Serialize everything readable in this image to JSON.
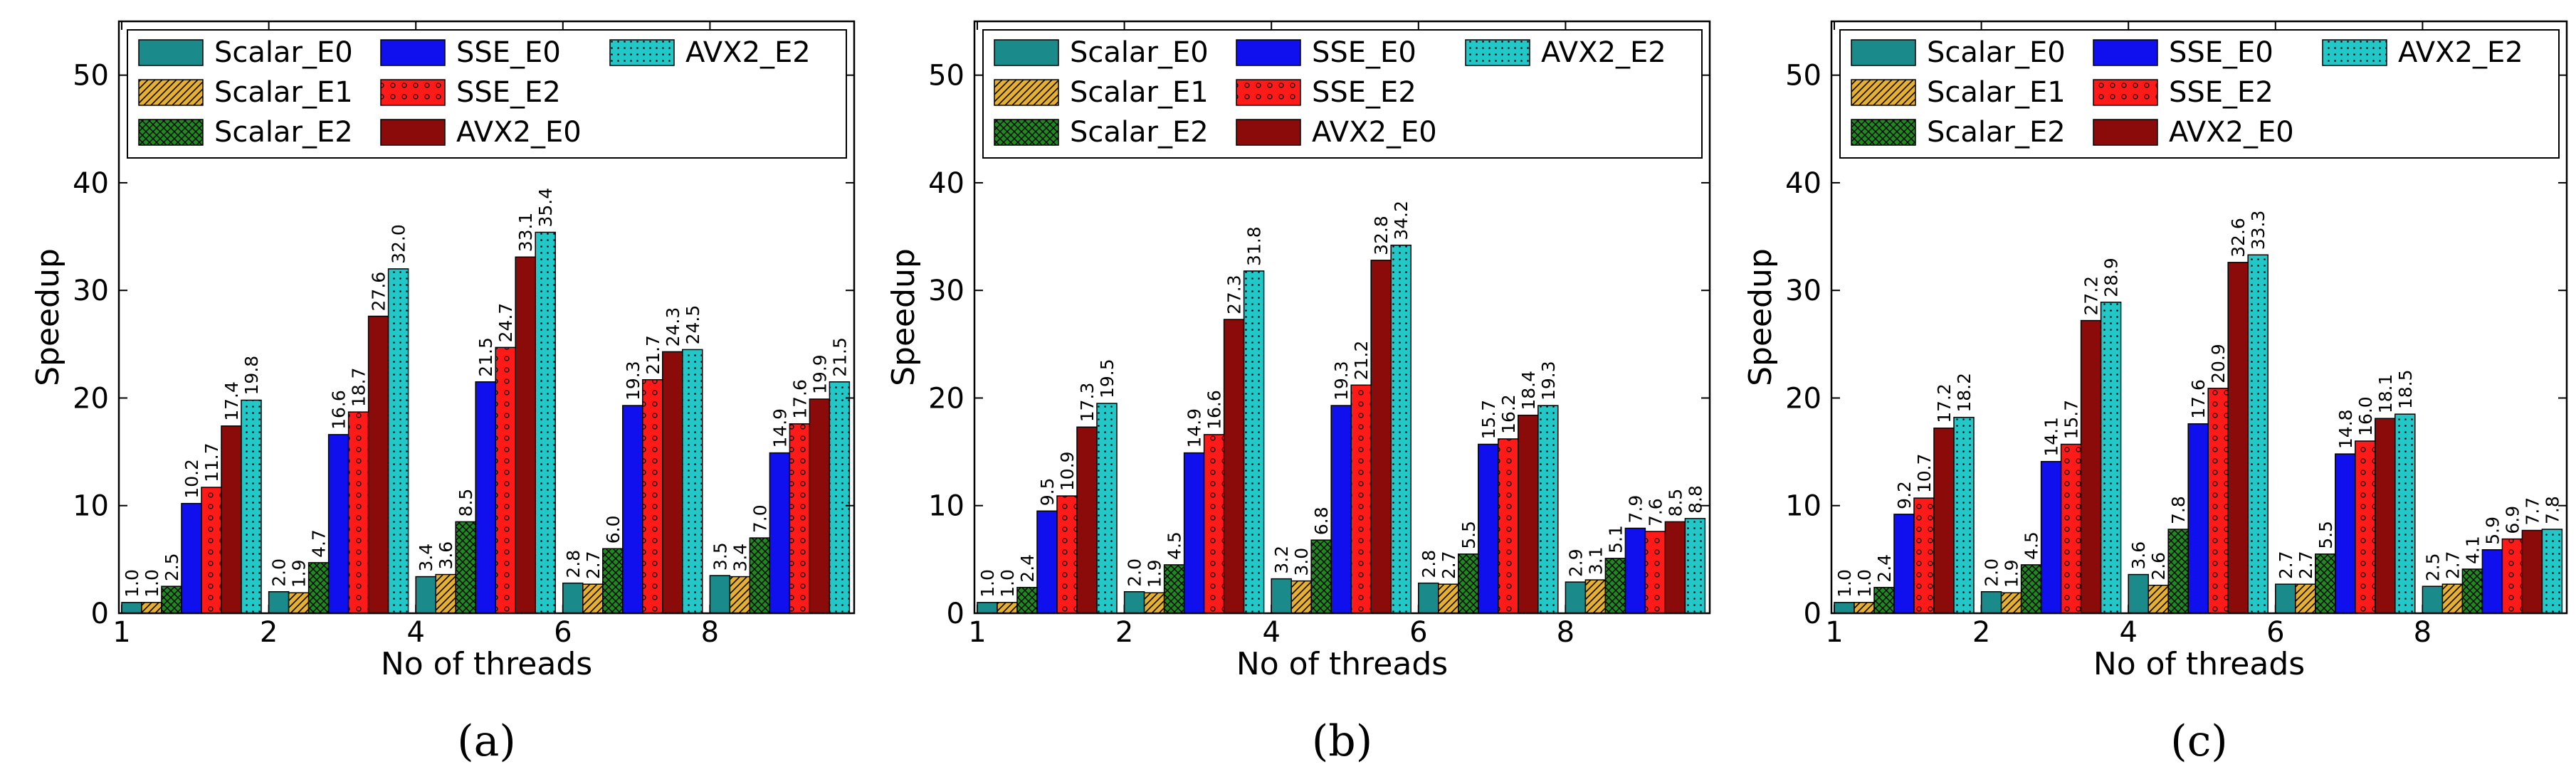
{
  "colors": {
    "Scalar_E0": "#1a8a8a",
    "Scalar_E1": "#e8b02a",
    "Scalar_E2": "#1f8a1f",
    "SSE_E0": "#1010ee",
    "SSE_E2": "#ff1a1a",
    "AVX2_E0": "#8b0b0b",
    "AVX2_E2": "#22c8c8"
  },
  "chart_data": [
    {
      "type": "bar",
      "caption": "(a)",
      "xlabel": "No of threads",
      "ylabel": "Speedup",
      "ylim": [
        0,
        55
      ],
      "yticks": [
        "0",
        "10",
        "20",
        "30",
        "40",
        "50"
      ],
      "categories": [
        "1",
        "2",
        "4",
        "6",
        "8"
      ],
      "legend_position": "top",
      "series": [
        {
          "name": "Scalar_E0",
          "values": [
            1.0,
            2.0,
            3.4,
            2.8,
            3.5
          ],
          "labels": [
            "1.0",
            "2.0",
            "3.4",
            "2.8",
            "3.5"
          ]
        },
        {
          "name": "Scalar_E1",
          "values": [
            1.0,
            1.9,
            3.6,
            2.7,
            3.4
          ],
          "labels": [
            "1.0",
            "1.9",
            "3.6",
            "2.7",
            "3.4"
          ]
        },
        {
          "name": "Scalar_E2",
          "values": [
            2.5,
            4.7,
            8.5,
            6.0,
            7.0
          ],
          "labels": [
            "2.5",
            "4.7",
            "8.5",
            "6.0",
            "7.0"
          ]
        },
        {
          "name": "SSE_E0",
          "values": [
            10.2,
            16.6,
            21.5,
            19.3,
            14.9
          ],
          "labels": [
            "10.2",
            "16.6",
            "21.5",
            "19.3",
            "14.9"
          ]
        },
        {
          "name": "SSE_E2",
          "values": [
            11.7,
            18.7,
            24.7,
            21.7,
            17.6
          ],
          "labels": [
            "11.7",
            "18.7",
            "24.7",
            "21.7",
            "17.6"
          ]
        },
        {
          "name": "AVX2_E0",
          "values": [
            17.4,
            27.6,
            33.1,
            24.3,
            19.9
          ],
          "labels": [
            "17.4",
            "27.6",
            "33.1",
            "24.3",
            "19.9"
          ]
        },
        {
          "name": "AVX2_E2",
          "values": [
            19.8,
            32.0,
            35.4,
            24.5,
            21.5
          ],
          "labels": [
            "19.8",
            "32.0",
            "35.4",
            "24.5",
            "21.5"
          ]
        }
      ]
    },
    {
      "type": "bar",
      "caption": "(b)",
      "xlabel": "No of threads",
      "ylabel": "Speedup",
      "ylim": [
        0,
        55
      ],
      "yticks": [
        "0",
        "10",
        "20",
        "30",
        "40",
        "50"
      ],
      "categories": [
        "1",
        "2",
        "4",
        "6",
        "8"
      ],
      "legend_position": "top",
      "series": [
        {
          "name": "Scalar_E0",
          "values": [
            1.0,
            2.0,
            3.2,
            2.8,
            2.9
          ],
          "labels": [
            "1.0",
            "2.0",
            "3.2",
            "2.8",
            "2.9"
          ]
        },
        {
          "name": "Scalar_E1",
          "values": [
            1.0,
            1.9,
            3.0,
            2.7,
            3.1
          ],
          "labels": [
            "1.0",
            "1.9",
            "3.0",
            "2.7",
            "3.1"
          ]
        },
        {
          "name": "Scalar_E2",
          "values": [
            2.4,
            4.5,
            6.8,
            5.5,
            5.1
          ],
          "labels": [
            "2.4",
            "4.5",
            "6.8",
            "5.5",
            "5.1"
          ]
        },
        {
          "name": "SSE_E0",
          "values": [
            9.5,
            14.9,
            19.3,
            15.7,
            7.9
          ],
          "labels": [
            "9.5",
            "14.9",
            "19.3",
            "15.7",
            "7.9"
          ]
        },
        {
          "name": "SSE_E2",
          "values": [
            10.9,
            16.6,
            21.2,
            16.2,
            7.6
          ],
          "labels": [
            "10.9",
            "16.6",
            "21.2",
            "16.2",
            "7.6"
          ]
        },
        {
          "name": "AVX2_E0",
          "values": [
            17.3,
            27.3,
            32.8,
            18.4,
            8.5
          ],
          "labels": [
            "17.3",
            "27.3",
            "32.8",
            "18.4",
            "8.5"
          ]
        },
        {
          "name": "AVX2_E2",
          "values": [
            19.5,
            31.8,
            34.2,
            19.3,
            8.8
          ],
          "labels": [
            "19.5",
            "31.8",
            "34.2",
            "19.3",
            "8.8"
          ]
        }
      ]
    },
    {
      "type": "bar",
      "caption": "(c)",
      "xlabel": "No of threads",
      "ylabel": "Speedup",
      "ylim": [
        0,
        55
      ],
      "yticks": [
        "0",
        "10",
        "20",
        "30",
        "40",
        "50"
      ],
      "categories": [
        "1",
        "2",
        "4",
        "6",
        "8"
      ],
      "legend_position": "top",
      "series": [
        {
          "name": "Scalar_E0",
          "values": [
            1.0,
            2.0,
            3.6,
            2.7,
            2.5
          ],
          "labels": [
            "1.0",
            "2.0",
            "3.6",
            "2.7",
            "2.5"
          ]
        },
        {
          "name": "Scalar_E1",
          "values": [
            1.0,
            1.9,
            2.6,
            2.7,
            2.7
          ],
          "labels": [
            "1.0",
            "1.9",
            "2.6",
            "2.7",
            "2.7"
          ]
        },
        {
          "name": "Scalar_E2",
          "values": [
            2.4,
            4.5,
            7.8,
            5.5,
            4.1
          ],
          "labels": [
            "2.4",
            "4.5",
            "7.8",
            "5.5",
            "4.1"
          ]
        },
        {
          "name": "SSE_E0",
          "values": [
            9.2,
            14.1,
            17.6,
            14.8,
            5.9
          ],
          "labels": [
            "9.2",
            "14.1",
            "17.6",
            "14.8",
            "5.9"
          ]
        },
        {
          "name": "SSE_E2",
          "values": [
            10.7,
            15.7,
            20.9,
            16.0,
            6.9
          ],
          "labels": [
            "10.7",
            "15.7",
            "20.9",
            "16.0",
            "6.9"
          ]
        },
        {
          "name": "AVX2_E0",
          "values": [
            17.2,
            27.2,
            32.6,
            18.1,
            7.7
          ],
          "labels": [
            "17.2",
            "27.2",
            "32.6",
            "18.1",
            "7.7"
          ]
        },
        {
          "name": "AVX2_E2",
          "values": [
            18.2,
            28.9,
            33.3,
            18.5,
            7.8
          ],
          "labels": [
            "18.2",
            "28.9",
            "33.3",
            "18.5",
            "7.8"
          ]
        }
      ]
    }
  ]
}
